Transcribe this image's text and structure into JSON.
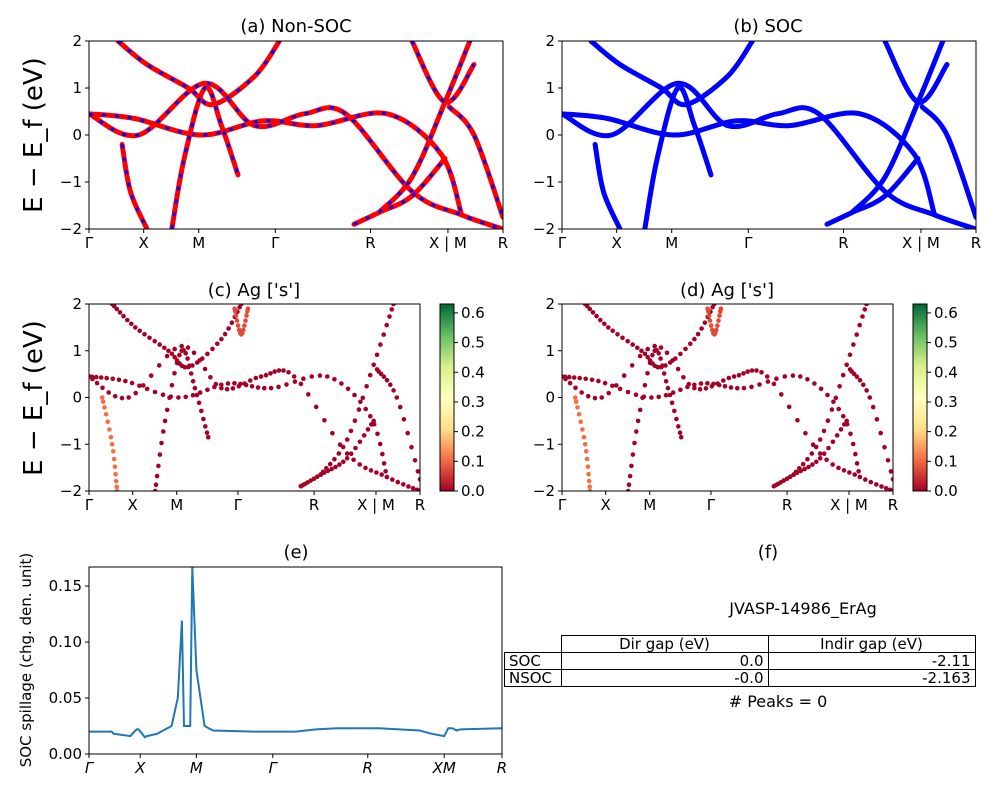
{
  "chart_data": [
    {
      "type": "line",
      "panel": "a",
      "title": "(a) Non-SOC",
      "ylabel": "E − E_f (eV)",
      "ylim": [
        -2,
        2
      ],
      "yticks": [
        "2",
        "1",
        "0",
        "−1",
        "−2"
      ],
      "xtick_labels": [
        "Γ",
        "X",
        "M",
        "Γ",
        "R",
        "X | M",
        "R"
      ],
      "line_colors": [
        "#ff0000",
        "#0000ff"
      ],
      "bands": [
        {
          "name": "",
          "x": [
            0,
            0.11,
            0.27,
            0.42,
            0.55,
            0.72,
            0.85,
            0.9
          ],
          "y": [
            0.45,
            0.35,
            0.0,
            0.3,
            0.2,
            0.45,
            -0.4,
            -1.7
          ]
        },
        {
          "name": "",
          "x": [
            0.0,
            0.12,
            0.28,
            0.4,
            0.52,
            0.62,
            0.78,
            0.9,
            1.0
          ],
          "y": [
            0.45,
            0.0,
            1.1,
            0.2,
            0.45,
            0.45,
            -1.2,
            -1.7,
            -2.0
          ]
        },
        {
          "name": "",
          "x": [
            0.07,
            0.14,
            0.24,
            0.3,
            0.4,
            0.46
          ],
          "y": [
            2.0,
            1.5,
            1.0,
            0.65,
            1.25,
            2.0
          ]
        },
        {
          "name": "",
          "x": [
            0.08,
            0.1,
            0.14
          ],
          "y": [
            -0.2,
            -1.2,
            -2.0
          ]
        },
        {
          "name": "",
          "x": [
            0.2,
            0.23,
            0.28,
            0.32,
            0.36
          ],
          "y": [
            -2.0,
            -0.5,
            1.0,
            0.2,
            -0.85
          ]
        },
        {
          "name": "",
          "x": [
            0.64,
            0.7,
            0.78,
            0.86
          ],
          "y": [
            -1.9,
            -1.65,
            -1.3,
            -0.5
          ]
        },
        {
          "name": "",
          "x": [
            0.7,
            0.78,
            0.86,
            0.92
          ],
          "y": [
            -1.65,
            -0.9,
            0.7,
            2.0
          ]
        },
        {
          "name": "",
          "x": [
            0.78,
            0.86,
            0.93
          ],
          "y": [
            2.0,
            0.7,
            1.5
          ]
        },
        {
          "name": "",
          "x": [
            0.87,
            0.93,
            1.0
          ],
          "y": [
            0.6,
            0.0,
            -1.75
          ]
        }
      ]
    },
    {
      "type": "line",
      "panel": "b",
      "title": "(b) SOC",
      "ylim": [
        -2,
        2
      ],
      "yticks": [
        "2",
        "1",
        "0",
        "−1",
        "−2"
      ],
      "xtick_labels": [
        "Γ",
        "X",
        "M",
        "Γ",
        "R",
        "X | M",
        "R"
      ],
      "line_colors": [
        "#0000ff"
      ],
      "bands": [
        {
          "name": "",
          "x": [
            0,
            0.11,
            0.27,
            0.42,
            0.55,
            0.72,
            0.85,
            0.9
          ],
          "y": [
            0.45,
            0.35,
            0.0,
            0.3,
            0.2,
            0.45,
            -0.4,
            -1.7
          ]
        },
        {
          "name": "",
          "x": [
            0.0,
            0.12,
            0.28,
            0.4,
            0.52,
            0.62,
            0.78,
            0.9,
            1.0
          ],
          "y": [
            0.45,
            0.0,
            1.1,
            0.2,
            0.45,
            0.45,
            -1.2,
            -1.7,
            -2.0
          ]
        },
        {
          "name": "",
          "x": [
            0.07,
            0.14,
            0.24,
            0.3,
            0.4,
            0.46
          ],
          "y": [
            2.0,
            1.5,
            1.0,
            0.65,
            1.25,
            2.0
          ]
        },
        {
          "name": "",
          "x": [
            0.08,
            0.1,
            0.14
          ],
          "y": [
            -0.2,
            -1.2,
            -2.0
          ]
        },
        {
          "name": "",
          "x": [
            0.2,
            0.23,
            0.28,
            0.32,
            0.36
          ],
          "y": [
            -2.0,
            -0.5,
            1.0,
            0.2,
            -0.85
          ]
        },
        {
          "name": "",
          "x": [
            0.64,
            0.7,
            0.78,
            0.86
          ],
          "y": [
            -1.9,
            -1.65,
            -1.3,
            -0.5
          ]
        },
        {
          "name": "",
          "x": [
            0.7,
            0.78,
            0.86,
            0.92
          ],
          "y": [
            -1.65,
            -0.9,
            0.7,
            2.0
          ]
        },
        {
          "name": "",
          "x": [
            0.78,
            0.86,
            0.93
          ],
          "y": [
            2.0,
            0.7,
            1.5
          ]
        },
        {
          "name": "",
          "x": [
            0.87,
            0.93,
            1.0
          ],
          "y": [
            0.6,
            0.0,
            -1.75
          ]
        }
      ]
    },
    {
      "type": "scatter",
      "panel": "c",
      "title": "(c)  Ag ['s']",
      "ylabel": "E − E_f (eV)",
      "ylim": [
        -2,
        2
      ],
      "yticks": [
        "2",
        "1",
        "0",
        "−1",
        "−2"
      ],
      "xtick_labels": [
        "Γ",
        "X",
        "M",
        "Γ",
        "R",
        "X | M",
        "R"
      ],
      "colorbar": {
        "range": [
          0,
          0.63
        ],
        "ticks": [
          "0.6",
          "0.5",
          "0.4",
          "0.3",
          "0.2",
          "0.1",
          "0.0"
        ],
        "colors": [
          "#a50026",
          "#f46d43",
          "#fee08b",
          "#ffffbf",
          "#d9ef8b",
          "#66bd63",
          "#006837"
        ]
      },
      "point_color": "#a50026",
      "bands": [
        {
          "name": "",
          "x": [
            0,
            0.11,
            0.27,
            0.42,
            0.55,
            0.72,
            0.85,
            0.9
          ],
          "y": [
            0.45,
            0.35,
            0.0,
            0.3,
            0.2,
            0.45,
            -0.4,
            -1.7
          ]
        },
        {
          "name": "",
          "x": [
            0.0,
            0.12,
            0.28,
            0.4,
            0.52,
            0.62,
            0.78,
            0.9,
            1.0
          ],
          "y": [
            0.45,
            0.0,
            1.1,
            0.2,
            0.45,
            0.45,
            -1.2,
            -1.7,
            -2.0
          ]
        },
        {
          "name": "",
          "x": [
            0.07,
            0.14,
            0.24,
            0.3,
            0.4,
            0.46
          ],
          "y": [
            2.0,
            1.5,
            1.0,
            0.65,
            1.25,
            2.0
          ]
        },
        {
          "name": "",
          "x": [
            0.2,
            0.23,
            0.28,
            0.32,
            0.36
          ],
          "y": [
            -2.0,
            -0.5,
            1.0,
            0.2,
            -0.85
          ]
        },
        {
          "name": "",
          "x": [
            0.64,
            0.7,
            0.78,
            0.86
          ],
          "y": [
            -1.9,
            -1.65,
            -1.3,
            -0.5
          ]
        },
        {
          "name": "",
          "x": [
            0.7,
            0.78,
            0.86,
            0.92
          ],
          "y": [
            -1.65,
            -0.9,
            0.7,
            2.0
          ]
        },
        {
          "name": "",
          "x": [
            0.87,
            0.93,
            1.0
          ],
          "y": [
            0.6,
            0.0,
            -1.75
          ]
        }
      ],
      "high_weight_bands": [
        {
          "x": [
            0.04,
            0.07,
            0.085
          ],
          "y": [
            0.0,
            -1.0,
            -2.0
          ],
          "weight": 0.2
        },
        {
          "x": [
            0.44,
            0.46,
            0.48
          ],
          "y": [
            1.9,
            1.35,
            1.9
          ],
          "weight": 0.15
        }
      ]
    },
    {
      "type": "scatter",
      "panel": "d",
      "title": "(d) Ag ['s']",
      "ylim": [
        -2,
        2
      ],
      "yticks": [
        "2",
        "1",
        "0",
        "−1",
        "−2"
      ],
      "xtick_labels": [
        "Γ",
        "X",
        "M",
        "Γ",
        "R",
        "X | M",
        "R"
      ],
      "colorbar": {
        "range": [
          0,
          0.63
        ],
        "ticks": [
          "0.6",
          "0.5",
          "0.4",
          "0.3",
          "0.2",
          "0.1",
          "0.0"
        ],
        "colors": [
          "#a50026",
          "#f46d43",
          "#fee08b",
          "#ffffbf",
          "#d9ef8b",
          "#66bd63",
          "#006837"
        ]
      },
      "point_color": "#a50026",
      "bands": [
        {
          "name": "",
          "x": [
            0,
            0.11,
            0.27,
            0.42,
            0.55,
            0.72,
            0.85,
            0.9
          ],
          "y": [
            0.45,
            0.35,
            0.0,
            0.3,
            0.2,
            0.45,
            -0.4,
            -1.7
          ]
        },
        {
          "name": "",
          "x": [
            0.0,
            0.12,
            0.28,
            0.4,
            0.52,
            0.62,
            0.78,
            0.9,
            1.0
          ],
          "y": [
            0.45,
            0.0,
            1.1,
            0.2,
            0.45,
            0.45,
            -1.2,
            -1.7,
            -2.0
          ]
        },
        {
          "name": "",
          "x": [
            0.07,
            0.14,
            0.24,
            0.3,
            0.4,
            0.46
          ],
          "y": [
            2.0,
            1.5,
            1.0,
            0.65,
            1.25,
            2.0
          ]
        },
        {
          "name": "",
          "x": [
            0.2,
            0.23,
            0.28,
            0.32,
            0.36
          ],
          "y": [
            -2.0,
            -0.5,
            1.0,
            0.2,
            -0.85
          ]
        },
        {
          "name": "",
          "x": [
            0.64,
            0.7,
            0.78,
            0.86
          ],
          "y": [
            -1.9,
            -1.65,
            -1.3,
            -0.5
          ]
        },
        {
          "name": "",
          "x": [
            0.7,
            0.78,
            0.86,
            0.92
          ],
          "y": [
            -1.65,
            -0.9,
            0.7,
            2.0
          ]
        },
        {
          "name": "",
          "x": [
            0.87,
            0.93,
            1.0
          ],
          "y": [
            0.6,
            0.0,
            -1.75
          ]
        }
      ],
      "high_weight_bands": [
        {
          "x": [
            0.04,
            0.07,
            0.085
          ],
          "y": [
            0.0,
            -1.0,
            -2.0
          ],
          "weight": 0.2
        },
        {
          "x": [
            0.44,
            0.46,
            0.48
          ],
          "y": [
            1.9,
            1.35,
            1.9
          ],
          "weight": 0.15
        }
      ]
    },
    {
      "type": "line",
      "panel": "e",
      "title": "(e)",
      "ylabel": "SOC spillage (chg. den. unit)",
      "ylim": [
        0,
        0.167
      ],
      "yticks": [
        "0.15",
        "0.10",
        "0.05",
        "0.00"
      ],
      "xtick_labels": [
        "Γ",
        "X",
        "M",
        "Γ",
        "R",
        "XM",
        "R"
      ],
      "line_color": "#1f77b4",
      "series": [
        {
          "name": "",
          "x": [
            0,
            0.055,
            0.06,
            0.1,
            0.115,
            0.12,
            0.135,
            0.14,
            0.165,
            0.2,
            0.215,
            0.225,
            0.23,
            0.245,
            0.25,
            0.26,
            0.28,
            0.3,
            0.4,
            0.5,
            0.55,
            0.6,
            0.67,
            0.7,
            0.8,
            0.83,
            0.86,
            0.87,
            0.88,
            0.89,
            0.9,
            1.0
          ],
          "y": [
            0.02,
            0.02,
            0.018,
            0.016,
            0.022,
            0.022,
            0.015,
            0.016,
            0.018,
            0.025,
            0.05,
            0.119,
            0.025,
            0.025,
            0.167,
            0.075,
            0.025,
            0.021,
            0.02,
            0.02,
            0.022,
            0.023,
            0.023,
            0.023,
            0.021,
            0.018,
            0.016,
            0.023,
            0.023,
            0.021,
            0.022,
            0.023
          ]
        }
      ]
    }
  ],
  "panel_f": {
    "title": "(f)",
    "material_id": "JVASP-14986_ErAg",
    "table": {
      "headers": [
        "",
        "Dir gap (eV)",
        "Indir gap (eV)"
      ],
      "rows": [
        {
          "label": "SOC",
          "dir": "0.0",
          "indir": "-2.11"
        },
        {
          "label": "NSOC",
          "dir": "-0.0",
          "indir": "-2.163"
        }
      ]
    },
    "peaks_text": "# Peaks = 0"
  }
}
